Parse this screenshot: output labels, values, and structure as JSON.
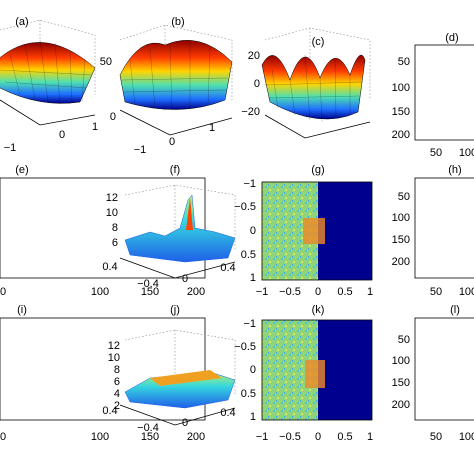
{
  "panels": [
    {
      "label": "(a)",
      "ticks": [
        "−1",
        "0",
        "1"
      ]
    },
    {
      "label": "(b)",
      "ticks": [
        "50",
        "0",
        "−1",
        "0",
        "1"
      ]
    },
    {
      "label": "(c)",
      "ticks": [
        "20",
        "0",
        "−20"
      ]
    },
    {
      "label": "(d)",
      "ticks": [
        "50",
        "100",
        "150",
        "200",
        "50",
        "100"
      ]
    },
    {
      "label": "(e)",
      "ticks": [
        "0",
        "100",
        "150",
        "200"
      ]
    },
    {
      "label": "(f)",
      "ticks": [
        "12",
        "10",
        "8",
        "6",
        "0.4",
        "−0.4",
        "0",
        "0.4"
      ]
    },
    {
      "label": "(g)",
      "ticks": [
        "−1",
        "−0.5",
        "0",
        "0.5",
        "1",
        "−1",
        "−0.5",
        "0",
        "0.5",
        "1"
      ]
    },
    {
      "label": "(h)",
      "ticks": [
        "50",
        "100",
        "150",
        "200",
        "50",
        "100"
      ]
    },
    {
      "label": "(i)",
      "ticks": [
        "0",
        "100",
        "150",
        "200"
      ]
    },
    {
      "label": "(j)",
      "ticks": [
        "12",
        "10",
        "8",
        "6",
        "4",
        "2",
        "0.4",
        "−0.4",
        "0",
        "0.4"
      ]
    },
    {
      "label": "(k)",
      "ticks": [
        "−1",
        "−0.5",
        "0",
        "0.5",
        "1",
        "−1",
        "−0.5",
        "0",
        "0.5",
        "1"
      ]
    },
    {
      "label": "(l)",
      "ticks": [
        "50",
        "100",
        "150",
        "200",
        "50",
        "100"
      ]
    }
  ]
}
